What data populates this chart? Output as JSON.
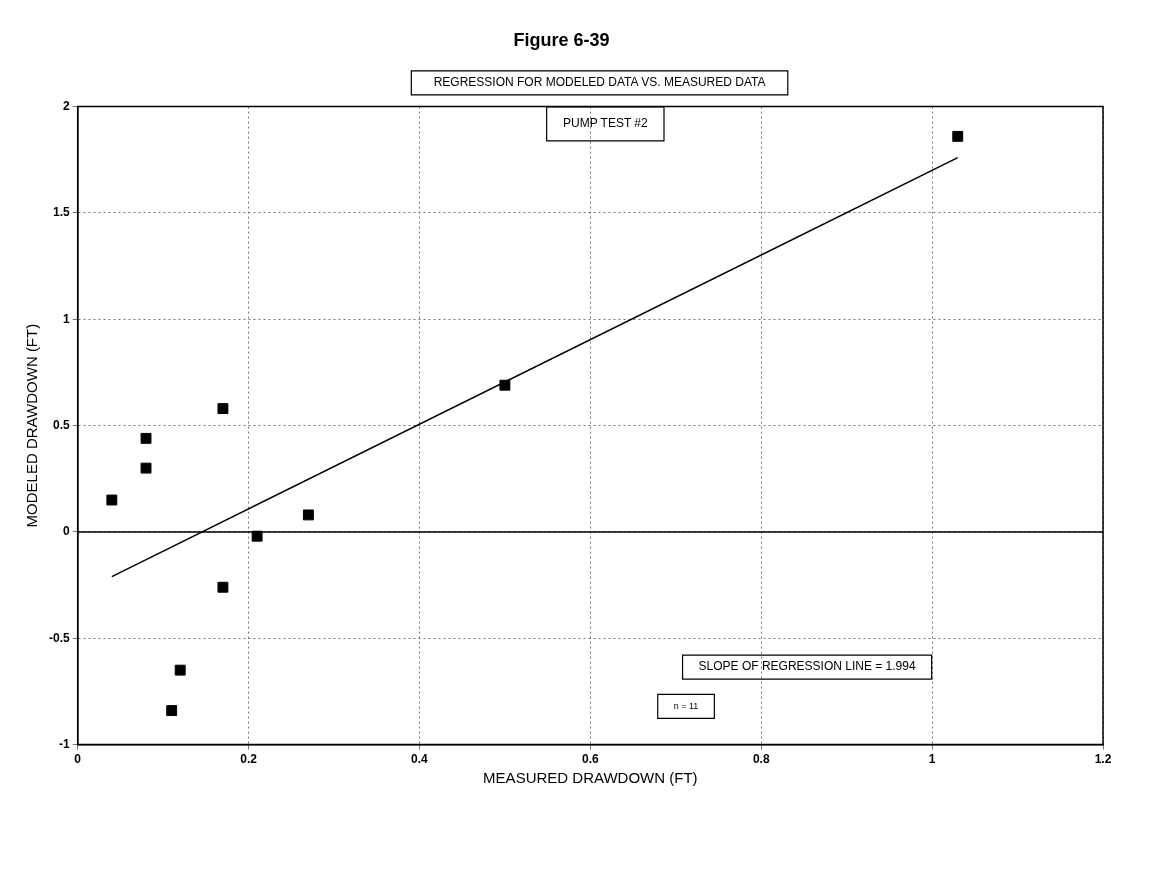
{
  "chart_data": {
    "type": "scatter",
    "title": "Figure 6-39",
    "xlabel": "MEASURED DRAWDOWN (FT)",
    "ylabel": "MODELED DRAWDOWN (FT)",
    "annotations": [
      "REGRESSION FOR MODELED DATA VS. MEASURED DATA",
      "PUMP TEST #2",
      "SLOPE OF REGRESSION LINE = 1.994",
      "n = 11"
    ],
    "series": [
      {
        "color": "#000000",
        "marker": "square",
        "x": [
          0.04,
          0.08,
          0.08,
          0.17,
          0.5,
          1.03,
          0.27,
          0.21,
          0.17,
          0.12,
          0.11
        ],
        "values": [
          0.15,
          0.44,
          0.3,
          0.58,
          0.69,
          1.86,
          0.08,
          -0.02,
          -0.26,
          -0.65,
          -0.84
        ]
      },
      {
        "type": "line",
        "color": "#000000",
        "marker": "none",
        "x": [
          0.04,
          1.03
        ],
        "values": [
          -0.21,
          1.76
        ]
      }
    ],
    "xlim": [
      0,
      1.2
    ],
    "xticks": [
      0,
      0.2,
      0.4,
      0.6,
      0.8,
      1,
      1.2
    ],
    "ylim": [
      -1,
      2
    ],
    "yticks": [
      -1,
      -0.5,
      0,
      0.5,
      1,
      1.5,
      2
    ],
    "grid": true,
    "legend": false,
    "ref_lines": [
      {
        "axis": "y",
        "value": 0,
        "color": "#000000"
      }
    ]
  }
}
